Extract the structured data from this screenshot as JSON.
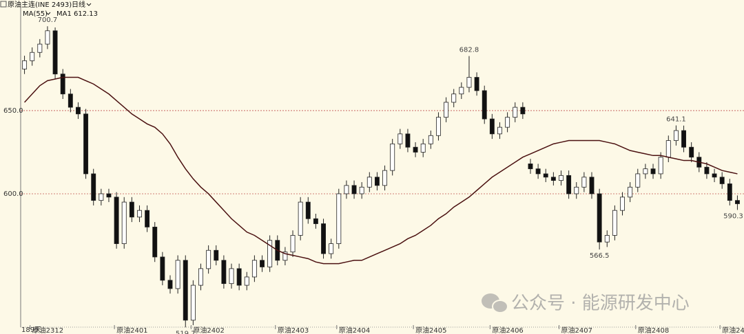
{
  "chart_data": {
    "type": "candlestick",
    "title": "原油主连(INE 2493)",
    "period": "日线",
    "indicator": "MA(55)",
    "ma_label": "MA1 612.13",
    "days_label": "189天",
    "watermark": "公众号 · 能源研发中心",
    "open": [
      675,
      680,
      685,
      690,
      698,
      672,
      660,
      652,
      648,
      612,
      596,
      600,
      598,
      570,
      595,
      586,
      590,
      580,
      562,
      548,
      543,
      560,
      524,
      545,
      555,
      566,
      560,
      546,
      555,
      545,
      550,
      560,
      556,
      572,
      560,
      565,
      575,
      595,
      585,
      582,
      564,
      570,
      600,
      605,
      600,
      604,
      610,
      605,
      614,
      630,
      636,
      628,
      625,
      630,
      635,
      646,
      655,
      660,
      664,
      670,
      662,
      645,
      636,
      640,
      646,
      652,
      618,
      615,
      612,
      610,
      608,
      611,
      600,
      604,
      610,
      600,
      571,
      575,
      590,
      598,
      604,
      612,
      615,
      612,
      622,
      632,
      638,
      628,
      622,
      616,
      612,
      610,
      606,
      596
    ],
    "high": [
      683,
      688,
      693,
      700.7,
      700,
      675,
      663,
      655,
      651,
      615,
      603,
      603,
      601,
      598,
      598,
      593,
      593,
      583,
      565,
      551,
      563,
      563,
      548,
      558,
      569,
      569,
      563,
      558,
      558,
      553,
      563,
      563,
      575,
      575,
      568,
      578,
      598,
      598,
      588,
      585,
      573,
      603,
      608,
      608,
      607,
      613,
      613,
      617,
      633,
      639,
      639,
      631,
      633,
      638,
      649,
      658,
      663,
      667,
      682.8,
      673,
      665,
      648,
      643,
      649,
      655,
      655,
      621,
      618,
      615,
      613,
      614,
      614,
      607,
      613,
      613,
      603,
      578,
      593,
      601,
      607,
      615,
      618,
      618,
      625,
      635,
      641.1,
      641,
      631,
      625,
      619,
      615,
      613,
      609,
      599
    ],
    "low": [
      672,
      677,
      682,
      687,
      669,
      657,
      649,
      645,
      609,
      593,
      593,
      595,
      567,
      567,
      583,
      583,
      577,
      559,
      545,
      540,
      540,
      519.7,
      521,
      542,
      552,
      557,
      543,
      543,
      542,
      542,
      547,
      553,
      553,
      557,
      557,
      562,
      572,
      582,
      579,
      561,
      561,
      567,
      597,
      597,
      597,
      601,
      602,
      602,
      611,
      627,
      625,
      622,
      622,
      627,
      632,
      643,
      652,
      657,
      661,
      659,
      642,
      633,
      633,
      637,
      643,
      645,
      612,
      609,
      607,
      605,
      605,
      597,
      597,
      601,
      597,
      566.5,
      568,
      572,
      587,
      595,
      601,
      609,
      609,
      609,
      619,
      629,
      625,
      619,
      613,
      609,
      607,
      603,
      593,
      590.3
    ],
    "close": [
      680,
      685,
      690,
      698,
      672,
      660,
      652,
      648,
      612,
      596,
      600,
      598,
      570,
      595,
      586,
      590,
      580,
      562,
      548,
      543,
      560,
      524,
      545,
      555,
      566,
      560,
      546,
      555,
      545,
      550,
      560,
      556,
      572,
      560,
      565,
      575,
      595,
      585,
      582,
      564,
      570,
      600,
      605,
      600,
      604,
      610,
      605,
      614,
      630,
      636,
      628,
      625,
      630,
      635,
      646,
      655,
      660,
      664,
      670,
      662,
      645,
      636,
      640,
      646,
      652,
      648,
      615,
      612,
      610,
      608,
      611,
      600,
      604,
      610,
      600,
      571,
      575,
      590,
      598,
      604,
      612,
      615,
      612,
      622,
      632,
      638,
      628,
      622,
      616,
      612,
      610,
      606,
      596,
      594
    ],
    "ma": [
      655,
      660,
      665,
      668,
      669,
      670,
      670,
      670,
      668,
      666,
      663,
      660,
      656,
      652,
      648,
      645,
      642,
      640,
      636,
      630,
      622,
      615,
      609,
      604,
      600,
      595,
      590,
      585,
      581,
      577,
      575,
      572,
      569,
      566,
      564,
      563,
      562,
      561,
      559,
      558,
      558,
      558,
      559,
      560,
      560,
      562,
      564,
      566,
      568,
      570,
      573,
      575,
      578,
      581,
      585,
      588,
      592,
      595,
      598,
      602,
      606,
      610,
      613,
      616,
      619,
      622,
      624,
      626,
      628,
      630,
      631,
      632,
      632,
      632,
      632,
      632,
      631,
      630,
      628,
      626,
      625,
      624,
      623,
      623,
      622,
      621,
      620,
      620,
      619,
      618,
      616,
      614,
      613,
      612
    ],
    "up_color": "#ffffff",
    "down_color": "#111111",
    "ma_color": "#4a1010",
    "grid_color": "#c0504d",
    "ylim": [
      515.7,
      716.5
    ],
    "yticks": [
      {
        "value": 600,
        "label": "600.0"
      },
      {
        "value": 650,
        "label": "650.0"
      }
    ],
    "xticks": [
      {
        "value": 1,
        "label": "原油2312"
      },
      {
        "value": 12,
        "label": "原油2401"
      },
      {
        "value": 22,
        "label": "原油2402"
      },
      {
        "value": 33,
        "label": "原油2403"
      },
      {
        "value": 41,
        "label": "原油2404"
      },
      {
        "value": 51,
        "label": "原油2405"
      },
      {
        "value": 61,
        "label": "原油2406"
      },
      {
        "value": 70,
        "label": "原油2407"
      },
      {
        "value": 80,
        "label": "原油2408"
      },
      {
        "value": 91,
        "label": "原油24"
      }
    ],
    "annotations": [
      {
        "x": 3,
        "value": 700.7,
        "label": "700.7"
      },
      {
        "x": 58,
        "value": 682.8,
        "label": "682.8"
      },
      {
        "x": 85,
        "value": 641.1,
        "label": "641.1"
      },
      {
        "x": 75,
        "value": 566.5,
        "label": "566.5"
      },
      {
        "x": 21,
        "value": 519.7,
        "label": "519.7"
      },
      {
        "x": 93,
        "value": 590.3,
        "label": "590.3"
      }
    ]
  }
}
